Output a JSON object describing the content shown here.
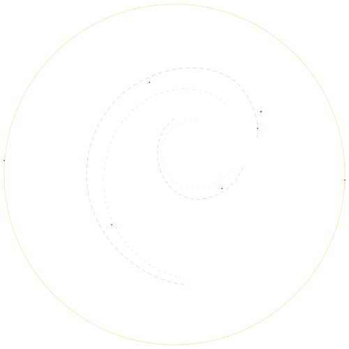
{
  "logo": {
    "icon": "debian-swirl-icon",
    "ring_color": "#f1e9b8",
    "swirl_edge_color": "#e7d9cf",
    "accent_color": "#d63a5a",
    "background_color": "#ffffff"
  }
}
